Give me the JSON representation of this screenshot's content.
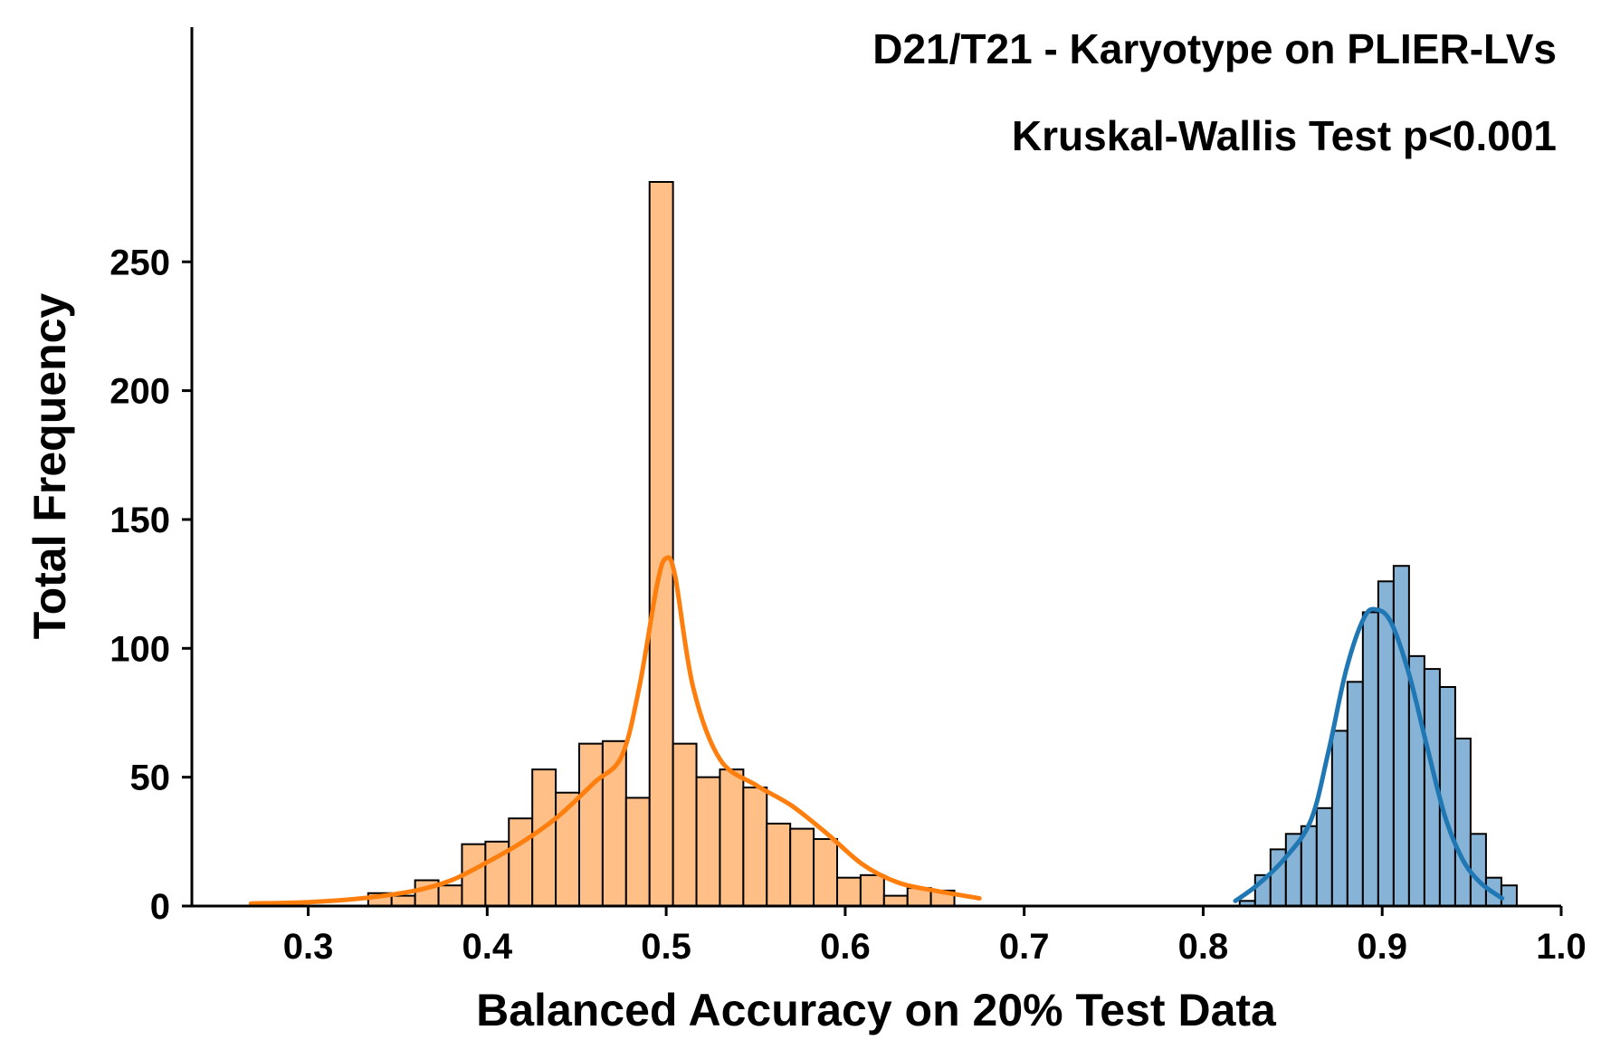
{
  "chart_data": {
    "type": "bar",
    "subtype": "histogram-with-kde",
    "title": "D21/T21 - Karyotype on PLIER-LVs",
    "annotation": "Kruskal-Wallis Test p<0.001",
    "xlabel": "Balanced Accuracy on 20% Test Data",
    "ylabel": "Total Frequency",
    "xlim": [
      0.235,
      1.0
    ],
    "ylim": [
      0,
      295
    ],
    "x_ticks": [
      "0.3",
      "0.4",
      "0.5",
      "0.6",
      "0.7",
      "0.8",
      "0.9",
      "1.0"
    ],
    "y_ticks": [
      "0",
      "50",
      "100",
      "150",
      "200",
      "250"
    ],
    "grid": false,
    "legend": "none",
    "series": [
      {
        "color": "#ff7f0e",
        "fill": "#ffbf86",
        "bin_start": 0.3335,
        "bin_width": 0.0131,
        "counts": [
          5,
          4,
          10,
          8,
          24,
          25,
          34,
          53,
          44,
          63,
          64,
          42,
          281,
          63,
          50,
          53,
          46,
          32,
          30,
          26,
          11,
          12,
          4,
          7,
          6
        ],
        "kde": [
          [
            0.268,
            1
          ],
          [
            0.3,
            1.5
          ],
          [
            0.33,
            3
          ],
          [
            0.36,
            6
          ],
          [
            0.38,
            10
          ],
          [
            0.4,
            17
          ],
          [
            0.42,
            25
          ],
          [
            0.44,
            35
          ],
          [
            0.46,
            48
          ],
          [
            0.475,
            58
          ],
          [
            0.485,
            85
          ],
          [
            0.495,
            125
          ],
          [
            0.5,
            135
          ],
          [
            0.505,
            128
          ],
          [
            0.515,
            85
          ],
          [
            0.53,
            57
          ],
          [
            0.55,
            47
          ],
          [
            0.57,
            39
          ],
          [
            0.59,
            28
          ],
          [
            0.61,
            16
          ],
          [
            0.63,
            9
          ],
          [
            0.65,
            6
          ],
          [
            0.675,
            3
          ]
        ]
      },
      {
        "color": "#1f77b4",
        "fill": "#86b3d6",
        "bin_start": 0.8204,
        "bin_width": 0.0086,
        "counts": [
          2,
          12,
          22,
          28,
          31,
          38,
          68,
          87,
          114,
          126,
          132,
          97,
          92,
          85,
          65,
          28,
          11,
          8
        ],
        "kde": [
          [
            0.818,
            2
          ],
          [
            0.83,
            8
          ],
          [
            0.845,
            18
          ],
          [
            0.86,
            33
          ],
          [
            0.87,
            60
          ],
          [
            0.88,
            92
          ],
          [
            0.89,
            112
          ],
          [
            0.897,
            115
          ],
          [
            0.905,
            110
          ],
          [
            0.915,
            90
          ],
          [
            0.925,
            62
          ],
          [
            0.935,
            35
          ],
          [
            0.945,
            18
          ],
          [
            0.955,
            9
          ],
          [
            0.967,
            3
          ]
        ]
      }
    ]
  }
}
